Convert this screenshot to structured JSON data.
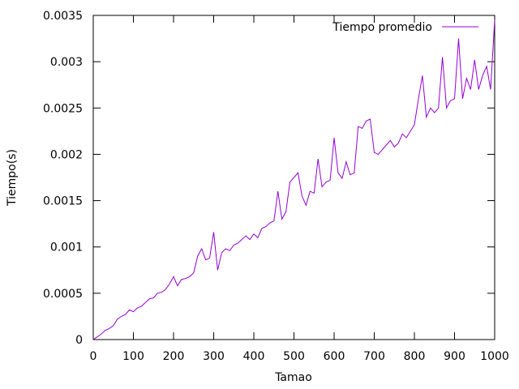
{
  "chart_data": {
    "type": "line",
    "title": "",
    "xlabel": "Tamao",
    "ylabel": "Tiempo(s)",
    "xlim": [
      0,
      1000
    ],
    "ylim": [
      0,
      0.0035
    ],
    "grid": false,
    "legend_position": "top-right",
    "x_ticks": [
      0,
      100,
      200,
      300,
      400,
      500,
      600,
      700,
      800,
      900,
      1000
    ],
    "x_tick_labels": [
      "0",
      "100",
      "200",
      "300",
      "400",
      "500",
      "600",
      "700",
      "800",
      "900",
      "1000"
    ],
    "y_ticks": [
      0,
      0.0005,
      0.001,
      0.0015,
      0.002,
      0.0025,
      0.003,
      0.0035
    ],
    "y_tick_labels": [
      "0",
      "0.0005",
      "0.001",
      "0.0015",
      "0.002",
      "0.0025",
      "0.003",
      "0.0035"
    ],
    "series": [
      {
        "name": "Tiempo promedio",
        "color": "#9400d3",
        "x": [
          0,
          10,
          20,
          30,
          40,
          50,
          60,
          70,
          80,
          90,
          100,
          110,
          120,
          130,
          140,
          150,
          160,
          170,
          180,
          190,
          200,
          210,
          220,
          230,
          240,
          250,
          260,
          270,
          280,
          290,
          300,
          310,
          320,
          330,
          340,
          350,
          360,
          370,
          380,
          390,
          400,
          410,
          420,
          430,
          440,
          450,
          460,
          470,
          480,
          490,
          500,
          510,
          520,
          530,
          540,
          550,
          560,
          570,
          580,
          590,
          600,
          610,
          620,
          630,
          640,
          650,
          660,
          670,
          680,
          690,
          700,
          710,
          720,
          730,
          740,
          750,
          760,
          770,
          780,
          790,
          800,
          810,
          820,
          830,
          840,
          850,
          860,
          870,
          880,
          890,
          900,
          910,
          920,
          930,
          940,
          950,
          960,
          970,
          980,
          990,
          1000
        ],
        "y": [
          0.0,
          3e-05,
          6e-05,
          0.0001,
          0.00012,
          0.00015,
          0.00022,
          0.00025,
          0.00027,
          0.00032,
          0.0003,
          0.00034,
          0.00036,
          0.0004,
          0.00044,
          0.00045,
          0.0005,
          0.00051,
          0.00054,
          0.0006,
          0.00068,
          0.00058,
          0.00065,
          0.00066,
          0.00068,
          0.00072,
          0.0009,
          0.00098,
          0.00086,
          0.00088,
          0.00116,
          0.00075,
          0.00094,
          0.00098,
          0.00096,
          0.00102,
          0.00104,
          0.00108,
          0.00112,
          0.00108,
          0.00114,
          0.0011,
          0.0012,
          0.00122,
          0.00126,
          0.00128,
          0.0016,
          0.0013,
          0.00138,
          0.0017,
          0.00175,
          0.0018,
          0.00155,
          0.00145,
          0.0016,
          0.00158,
          0.00195,
          0.00165,
          0.0017,
          0.00172,
          0.00218,
          0.0018,
          0.00174,
          0.00192,
          0.00178,
          0.0018,
          0.0023,
          0.00228,
          0.00236,
          0.00238,
          0.00202,
          0.002,
          0.00205,
          0.0021,
          0.00215,
          0.00208,
          0.00212,
          0.00222,
          0.00218,
          0.00225,
          0.00232,
          0.0026,
          0.00285,
          0.0024,
          0.0025,
          0.00245,
          0.0025,
          0.00305,
          0.0025,
          0.00258,
          0.0026,
          0.00325,
          0.0026,
          0.00282,
          0.0027,
          0.00302,
          0.0027,
          0.00285,
          0.00295,
          0.0027,
          0.00345
        ]
      }
    ]
  }
}
